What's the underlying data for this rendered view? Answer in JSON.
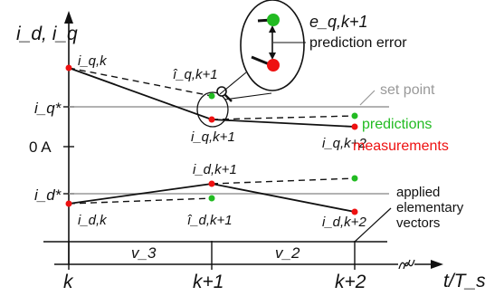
{
  "axes": {
    "y_label": "i_d, i_q",
    "x_label": "t/T_s",
    "y_ticks": {
      "iq_ref": "i_q*",
      "zero": "0 A",
      "id_ref": "i_d*"
    },
    "x_ticks": [
      "k",
      "k+1",
      "k+2"
    ]
  },
  "labels": {
    "iq_k": "i_q,k",
    "iq_k1_pred": "î_q,k+1",
    "iq_k1": "i_q,k+1",
    "iq_k2": "i_q,k+2",
    "id_k": "i_d,k",
    "id_k1": "i_d,k+1",
    "id_k1_pred": "î_d,k+1",
    "id_k2": "i_d,k+2",
    "set_point": "set point",
    "predictions": "predictions",
    "measurements": "measurements",
    "error_symbol": "e_q,k+1",
    "prediction_error": "prediction error",
    "applied_vectors_line1": "applied",
    "applied_vectors_line2": "elementary",
    "applied_vectors_line3": "vectors",
    "v3": "v_3",
    "v2": "v_2"
  },
  "colors": {
    "measurement": "#ee1111",
    "prediction": "#22bb22",
    "set_point_line": "#999999",
    "axis": "#111111"
  }
}
